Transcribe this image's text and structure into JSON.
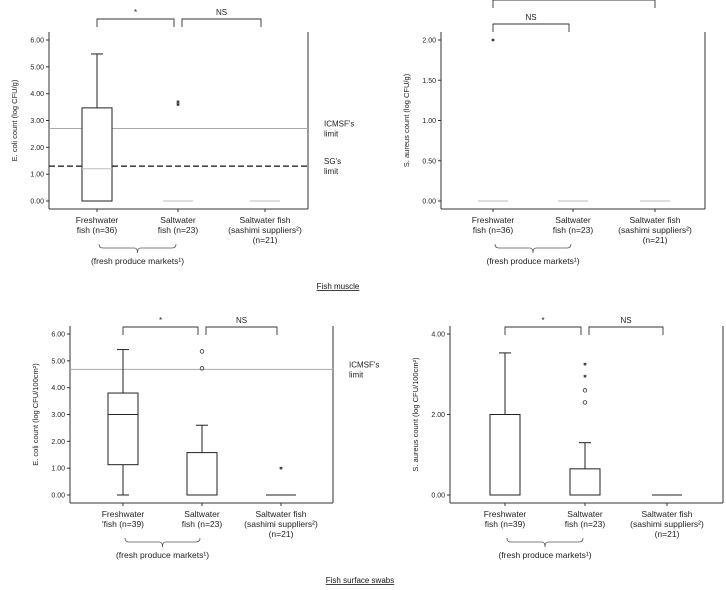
{
  "captions": {
    "top": "Fish muscle",
    "bottom": "Fish surface swabs"
  },
  "chart_data": [
    {
      "type": "box",
      "ylabel": "E. coli count (log CFU/g)",
      "ylim": [
        0,
        6
      ],
      "yticks": [
        "0.00",
        "1.00",
        "2.00",
        "3.00",
        "4.00",
        "5.00",
        "6.00"
      ],
      "ytick_values": [
        0,
        1,
        2,
        3,
        4,
        5,
        6
      ],
      "categories": [
        "Freshwater|fish (n=36)",
        "Saltwater|fish (n=23)",
        "Saltwater fish|(sashimi suppliers²)|(n=21)"
      ],
      "group_label": "(fresh produce markets¹)",
      "boxes": [
        {
          "min": 0,
          "q1": 0,
          "median": 1.2,
          "q3": 3.47,
          "max": 5.48,
          "outliers": []
        },
        {
          "min": 0,
          "q1": 0,
          "median": 0,
          "q3": 0,
          "max": 0,
          "outliers": [
            {
              "v": 3.6,
              "m": "star"
            },
            {
              "v": 3.7,
              "m": "star"
            }
          ]
        },
        {
          "min": 0,
          "q1": 0,
          "median": 0,
          "q3": 0,
          "max": 0,
          "outliers": []
        }
      ],
      "reference_lines": [
        {
          "value": 2.7,
          "label": "ICMSF's|limit",
          "style": "solid"
        },
        {
          "value": 1.3,
          "label": "SG's|limit",
          "style": "dashed"
        }
      ],
      "brackets": [
        {
          "from": 0,
          "to": 1,
          "label": "*",
          "level": 0
        },
        {
          "from": 1,
          "to": 2,
          "label": "NS",
          "level": 0
        }
      ]
    },
    {
      "type": "box",
      "ylabel": "S. aureus count (log CFU/g)",
      "ylim": [
        0,
        2
      ],
      "yticks": [
        "0.00",
        "0.50",
        "1.00",
        "1.50",
        "2.00"
      ],
      "ytick_values": [
        0,
        0.5,
        1,
        1.5,
        2
      ],
      "categories": [
        "Freshwater|fish (n=36)",
        "Saltwater|fish (n=23)",
        "Saltwater fish|(sashimi suppliers²)|(n=21)"
      ],
      "group_label": "(fresh produce markets¹)",
      "boxes": [
        {
          "min": 0,
          "q1": 0,
          "median": 0,
          "q3": 0,
          "max": 0,
          "outliers": [
            {
              "v": 2.0,
              "m": "star"
            }
          ]
        },
        {
          "min": 0,
          "q1": 0,
          "median": 0,
          "q3": 0,
          "max": 0,
          "outliers": []
        },
        {
          "min": 0,
          "q1": 0,
          "median": 0,
          "q3": 0,
          "max": 0,
          "outliers": []
        }
      ],
      "reference_lines": [],
      "brackets": [
        {
          "from": 0,
          "to": 1,
          "label": "NS",
          "level": 0
        },
        {
          "from": 0,
          "to": 2,
          "label": "",
          "level": 1
        }
      ]
    },
    {
      "type": "box",
      "ylabel": "E. coli count (log CFU/100cm²)",
      "ylim": [
        0,
        6
      ],
      "yticks": [
        "0.00",
        "1.00",
        "2.00",
        "3.00",
        "4.00",
        "5.00",
        "6.00"
      ],
      "ytick_values": [
        0,
        1,
        2,
        3,
        4,
        5,
        6
      ],
      "categories": [
        "Freshwater|'fish (n=39)",
        "Saltwater|fish (n=23)",
        "Saltwater fish|(sashimi suppliers²)|(n=21)"
      ],
      "group_label": "(fresh produce markets¹)",
      "boxes": [
        {
          "min": 0,
          "q1": 1.13,
          "median": 3.0,
          "q3": 3.8,
          "max": 5.42,
          "outliers": []
        },
        {
          "min": 0,
          "q1": 0,
          "median": 0,
          "q3": 1.58,
          "max": 2.6,
          "outliers": [
            {
              "v": 4.72,
              "m": "circle"
            },
            {
              "v": 5.35,
              "m": "circle"
            }
          ]
        },
        {
          "min": 0,
          "q1": 0,
          "median": 0,
          "q3": 0,
          "max": 0,
          "outliers": [
            {
              "v": 1.0,
              "m": "star"
            }
          ]
        }
      ],
      "reference_lines": [
        {
          "value": 4.68,
          "label": "ICMSF's|limit",
          "style": "solid"
        }
      ],
      "brackets": [
        {
          "from": 0,
          "to": 1,
          "label": "*",
          "level": 0
        },
        {
          "from": 1,
          "to": 2,
          "label": "NS",
          "level": 0
        }
      ]
    },
    {
      "type": "box",
      "ylabel": "S. aureus count (log CFU/100cm²)",
      "ylim": [
        0,
        4
      ],
      "yticks": [
        "0.00",
        "2.00",
        "4.00"
      ],
      "ytick_values": [
        0,
        2,
        4
      ],
      "categories": [
        "Freshwater|fish (n=39)",
        "Saltwater|fish (n=23)",
        "Saltwater fish|(sashimi suppliers²)|(n=21)"
      ],
      "group_label": "(fresh produce markets¹)",
      "boxes": [
        {
          "min": 0,
          "q1": 0,
          "median": 0,
          "q3": 2.0,
          "max": 3.53,
          "outliers": []
        },
        {
          "min": 0,
          "q1": 0,
          "median": 0,
          "q3": 0.65,
          "max": 1.3,
          "outliers": [
            {
              "v": 2.3,
              "m": "circle"
            },
            {
              "v": 2.6,
              "m": "circle"
            },
            {
              "v": 2.95,
              "m": "star"
            },
            {
              "v": 3.25,
              "m": "star"
            }
          ]
        },
        {
          "min": 0,
          "q1": 0,
          "median": 0,
          "q3": 0,
          "max": 0,
          "outliers": []
        }
      ],
      "reference_lines": [],
      "brackets": [
        {
          "from": 0,
          "to": 1,
          "label": "*",
          "level": 0
        },
        {
          "from": 1,
          "to": 2,
          "label": "NS",
          "level": 0
        }
      ]
    }
  ]
}
